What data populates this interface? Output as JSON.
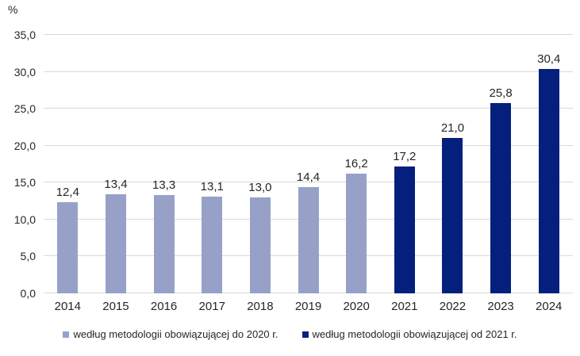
{
  "chart_data": {
    "type": "bar",
    "title": "",
    "ylabel": "%",
    "xlabel": "",
    "categories": [
      "2014",
      "2015",
      "2016",
      "2017",
      "2018",
      "2019",
      "2020",
      "2021",
      "2022",
      "2023",
      "2024"
    ],
    "series": [
      {
        "name": "według metodologii obowiązującej do 2020 r.",
        "color": "#97A1C8",
        "values": [
          12.4,
          13.4,
          13.3,
          13.1,
          13.0,
          14.4,
          16.2,
          null,
          null,
          null,
          null
        ]
      },
      {
        "name": "według metodologii obowiązującej od 2021 r.",
        "color": "#04207C",
        "values": [
          null,
          null,
          null,
          null,
          null,
          null,
          null,
          17.2,
          21.0,
          25.8,
          30.4
        ]
      }
    ],
    "data_labels": [
      "12,4",
      "13,4",
      "13,3",
      "13,1",
      "13,0",
      "14,4",
      "16,2",
      "17,2",
      "21,0",
      "25,8",
      "30,4"
    ],
    "ylim": [
      0,
      35
    ],
    "ytick_step": 5,
    "ytick_labels": [
      "0,0",
      "5,0",
      "10,0",
      "15,0",
      "20,0",
      "25,0",
      "30,0",
      "35,0"
    ],
    "grid": true,
    "grid_color": "#D9D9D9",
    "text_color": "#262626",
    "legend_position": "bottom",
    "decimal_separator": ","
  }
}
